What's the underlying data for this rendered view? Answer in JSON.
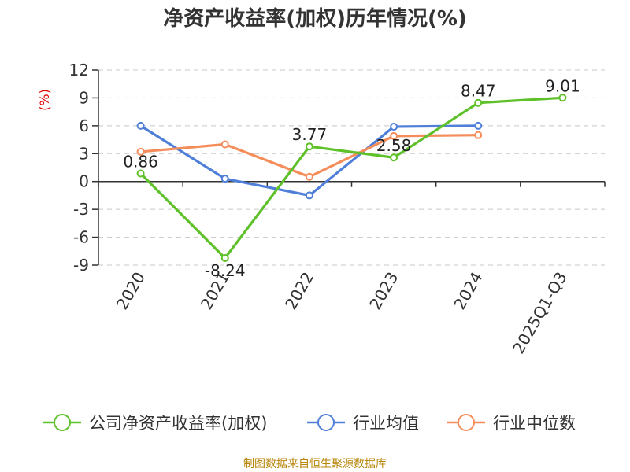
{
  "title": "净资产收益率(加权)历年情况(%)",
  "source": "制图数据来自恒生聚源数据库",
  "chart_data": {
    "type": "line",
    "title": "净资产收益率(加权)历年情况(%)",
    "ylabel": "(%)",
    "xlabel": "",
    "categories": [
      "2020",
      "2021",
      "2022",
      "2023",
      "2024",
      "2025Q1-Q3"
    ],
    "ylim": [
      -9,
      12
    ],
    "yticks": [
      12,
      9,
      6,
      3,
      0,
      -3,
      -6,
      -9
    ],
    "grid": true,
    "legend_position": "bottom",
    "series": [
      {
        "name": "公司净资产收益率(加权)",
        "color": "#5ec12a",
        "values": [
          0.86,
          -8.24,
          3.77,
          2.58,
          8.47,
          9.01
        ],
        "labels": [
          "0.86",
          "-8.24",
          "3.77",
          "2.58",
          "8.47",
          "9.01"
        ]
      },
      {
        "name": "行业均值",
        "color": "#4f7fd9",
        "values": [
          6.0,
          0.3,
          -1.5,
          5.9,
          6.0,
          null
        ]
      },
      {
        "name": "行业中位数",
        "color": "#f58d5b",
        "values": [
          3.2,
          4.0,
          0.5,
          4.9,
          5.0,
          null
        ]
      }
    ]
  }
}
